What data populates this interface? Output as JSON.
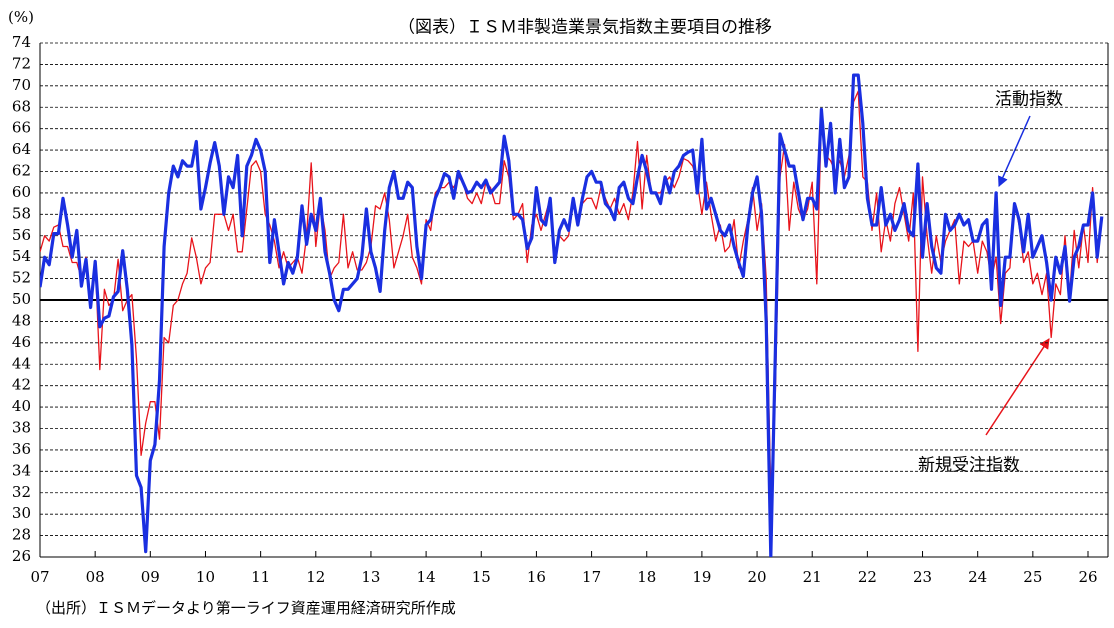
{
  "chart_data": {
    "type": "line",
    "title": "（図表）ＩＳＭ非製造業景気指数主要項目の推移",
    "y_unit": "(%)",
    "source": "（出所）ＩＳＭデータより第一ライフ資産運用経済研究所作成",
    "categories": [
      "07",
      null,
      null,
      null,
      null,
      null,
      null,
      null,
      null,
      null,
      null,
      null,
      "08",
      null,
      null,
      null,
      null,
      null,
      null,
      null,
      null,
      null,
      null,
      null,
      "09",
      null,
      null,
      null,
      null,
      null,
      null,
      null,
      null,
      null,
      null,
      null,
      "10",
      null,
      null,
      null,
      null,
      null,
      null,
      null,
      null,
      null,
      null,
      null,
      "11",
      null,
      null,
      null,
      null,
      null,
      null,
      null,
      null,
      null,
      null,
      null,
      "12",
      null,
      null,
      null,
      null,
      null,
      null,
      null,
      null,
      null,
      null,
      null,
      "13",
      null,
      null,
      null,
      null,
      null,
      null,
      null,
      null,
      null,
      null,
      null,
      "14",
      null,
      null,
      null,
      null,
      null,
      null,
      null,
      null,
      null,
      null,
      null,
      "15",
      null,
      null,
      null,
      null,
      null,
      null,
      null,
      null,
      null,
      null,
      null,
      "16",
      null,
      null,
      null,
      null,
      null,
      null,
      null,
      null,
      null,
      null,
      null,
      "17",
      null,
      null,
      null,
      null,
      null,
      null,
      null,
      null,
      null,
      null,
      null,
      "18",
      null,
      null,
      null,
      null,
      null,
      null,
      null,
      null,
      null,
      null,
      null,
      "19",
      null,
      null,
      null,
      null,
      null,
      null,
      null,
      null,
      null,
      null,
      null,
      "20",
      null,
      null,
      null,
      null,
      null,
      null,
      null,
      null,
      null,
      null,
      null,
      "21",
      null,
      null,
      null,
      null,
      null,
      null,
      null,
      null,
      null,
      null,
      null,
      "22",
      null,
      null,
      null,
      null,
      null,
      null,
      null,
      null,
      null,
      null,
      null,
      "23",
      null,
      null,
      null,
      null,
      null,
      null,
      null,
      null,
      null,
      null,
      null,
      "24",
      null,
      null,
      null,
      null,
      null,
      null,
      null,
      null,
      null,
      null,
      null,
      "25",
      null,
      null,
      null,
      null,
      null,
      null,
      null,
      null,
      null,
      null,
      null,
      "26",
      null,
      null,
      null
    ],
    "series": [
      {
        "name": "新規受注指数",
        "color": "#e8141b",
        "width": 1.3,
        "values": [
          54.5,
          56.0,
          55.5,
          56.8,
          57.0,
          55.0,
          55.0,
          53.5,
          53.5,
          52.0,
          54.0,
          49.5,
          53.5,
          43.5,
          51.0,
          49.5,
          50.0,
          53.8,
          49.0,
          50.0,
          50.5,
          44.5,
          35.5,
          38.5,
          40.5,
          40.5,
          37.0,
          46.5,
          46.0,
          49.5,
          50.0,
          51.5,
          52.5,
          55.8,
          54.0,
          51.5,
          53.0,
          53.5,
          58.0,
          58.0,
          58.0,
          56.5,
          58.0,
          54.5,
          54.5,
          58.5,
          62.5,
          63.0,
          62.0,
          58.0,
          57.0,
          55.5,
          53.0,
          54.5,
          53.0,
          53.5,
          54.0,
          52.5,
          56.0,
          62.8,
          55.0,
          59.0,
          56.5,
          52.0,
          53.0,
          53.5,
          58.0,
          53.0,
          54.5,
          52.8,
          52.8,
          53.5,
          55.0,
          58.8,
          58.5,
          60.0,
          57.5,
          53.0,
          54.5,
          56.0,
          58.0,
          54.0,
          53.0,
          51.5,
          57.5,
          56.5,
          60.0,
          60.5,
          60.5,
          61.0,
          60.5,
          61.5,
          61.0,
          59.5,
          59.0,
          60.0,
          59.0,
          61.0,
          60.5,
          59.0,
          59.0,
          63.0,
          61.5,
          57.5,
          58.0,
          59.0,
          53.5,
          57.0,
          58.0,
          56.5,
          58.0,
          59.5,
          54.5,
          56.0,
          55.5,
          56.0,
          59.0,
          57.0,
          59.0,
          59.5,
          59.5,
          58.5,
          60.5,
          59.5,
          58.5,
          59.5,
          58.0,
          59.0,
          57.5,
          60.0,
          64.8,
          58.5,
          63.5,
          60.0,
          60.0,
          60.0,
          61.0,
          61.5,
          60.5,
          61.5,
          63.2,
          63.0,
          62.5,
          61.0,
          58.0,
          61.0,
          58.0,
          55.5,
          57.0,
          54.5,
          55.0,
          57.5,
          53.0,
          55.5,
          57.5,
          60.5,
          56.5,
          59.0,
          52.0,
          32.0,
          41.5,
          61.5,
          64.5,
          56.5,
          61.0,
          58.5,
          57.5,
          58.5,
          61.0,
          51.5,
          67.0,
          63.5,
          63.0,
          62.0,
          63.0,
          61.5,
          63.5,
          68.5,
          69.5,
          61.5,
          61.0,
          56.5,
          60.0,
          54.5,
          57.5,
          55.5,
          59.0,
          60.5,
          58.0,
          55.5,
          60.0,
          45.2,
          61.5,
          56.0,
          52.5,
          56.0,
          53.5,
          55.5,
          56.5,
          57.5,
          51.5,
          55.5,
          55.0,
          55.5,
          52.5,
          55.5,
          54.5,
          52.0,
          54.0,
          47.8,
          52.5,
          53.0,
          59.0,
          57.0,
          53.5,
          54.5,
          51.5,
          52.5,
          50.5,
          52.5,
          46.5,
          51.5,
          50.5,
          56.0,
          50.5,
          56.5,
          53.0,
          57.0,
          53.5,
          60.5,
          53.5,
          57.5
        ]
      },
      {
        "name": "活動指数",
        "color": "#1a2fe0",
        "width": 3.2,
        "values": [
          51.2,
          54.0,
          53.3,
          56.2,
          56.2,
          59.5,
          57.0,
          54.0,
          56.5,
          51.3,
          53.8,
          49.3,
          53.6,
          47.5,
          48.3,
          48.5,
          50.3,
          50.8,
          54.6,
          51.0,
          45.8,
          33.6,
          32.5,
          26.5,
          35.0,
          36.5,
          42.5,
          55.0,
          60.0,
          62.5,
          61.5,
          63.0,
          62.5,
          62.5,
          64.8,
          58.5,
          60.5,
          62.8,
          64.7,
          62.5,
          58.0,
          61.5,
          60.5,
          63.5,
          56.0,
          62.5,
          63.5,
          65.0,
          64.0,
          62.0,
          53.5,
          57.5,
          54.5,
          51.5,
          53.5,
          52.5,
          54.0,
          58.8,
          55.2,
          58.0,
          56.5,
          59.5,
          54.5,
          52.5,
          50.0,
          49.0,
          51.0,
          51.0,
          51.5,
          52.0,
          54.0,
          58.5,
          54.5,
          53.0,
          50.8,
          56.5,
          60.5,
          62.0,
          59.5,
          59.5,
          61.0,
          60.5,
          55.0,
          52.0,
          57.0,
          57.5,
          59.5,
          60.5,
          61.8,
          61.5,
          59.5,
          62.0,
          61.0,
          60.0,
          60.2,
          61.0,
          60.5,
          61.2,
          60.0,
          60.5,
          61.0,
          65.3,
          63.0,
          58.0,
          58.0,
          57.5,
          54.8,
          55.8,
          60.5,
          57.5,
          57.0,
          59.5,
          53.5,
          56.5,
          57.5,
          56.5,
          59.5,
          57.0,
          59.5,
          61.5,
          62.0,
          61.0,
          61.0,
          59.0,
          58.5,
          57.5,
          60.5,
          61.0,
          59.5,
          59.0,
          61.5,
          63.5,
          62.0,
          60.0,
          60.0,
          59.0,
          61.5,
          60.0,
          62.0,
          62.5,
          63.5,
          63.8,
          64.0,
          60.0,
          65.0,
          58.5,
          59.5,
          58.0,
          56.5,
          56.0,
          57.0,
          55.0,
          53.5,
          52.2,
          57.0,
          60.0,
          61.5,
          58.0,
          48.0,
          26.0,
          45.4,
          65.5,
          64.0,
          62.5,
          62.5,
          60.0,
          57.5,
          59.5,
          59.5,
          58.5,
          67.8,
          62.5,
          66.5,
          60.0,
          65.0,
          60.5,
          61.5,
          71.0,
          71.0,
          66.5,
          59.5,
          57.0,
          57.0,
          60.5,
          57.0,
          58.0,
          56.5,
          57.5,
          59.0,
          56.5,
          56.0,
          62.7,
          54.0,
          59.0,
          55.0,
          53.0,
          52.5,
          58.0,
          56.5,
          57.0,
          58.0,
          57.0,
          57.5,
          55.5,
          55.5,
          57.0,
          57.5,
          51.0,
          60.0,
          49.5,
          54.0,
          54.0,
          59.0,
          57.5,
          54.5,
          58.0,
          54.0,
          55.0,
          56.0,
          53.5,
          50.0,
          54.0,
          52.5,
          55.0,
          49.9,
          54.0,
          55.0,
          57.0,
          57.0,
          60.0,
          54.0,
          57.8
        ]
      }
    ],
    "ylim": [
      26,
      74
    ],
    "yticks": [
      26,
      28,
      30,
      32,
      34,
      36,
      38,
      40,
      42,
      44,
      46,
      48,
      50,
      52,
      54,
      56,
      58,
      60,
      62,
      64,
      66,
      68,
      70,
      72,
      74
    ],
    "grid": true,
    "reference_line": 50
  }
}
